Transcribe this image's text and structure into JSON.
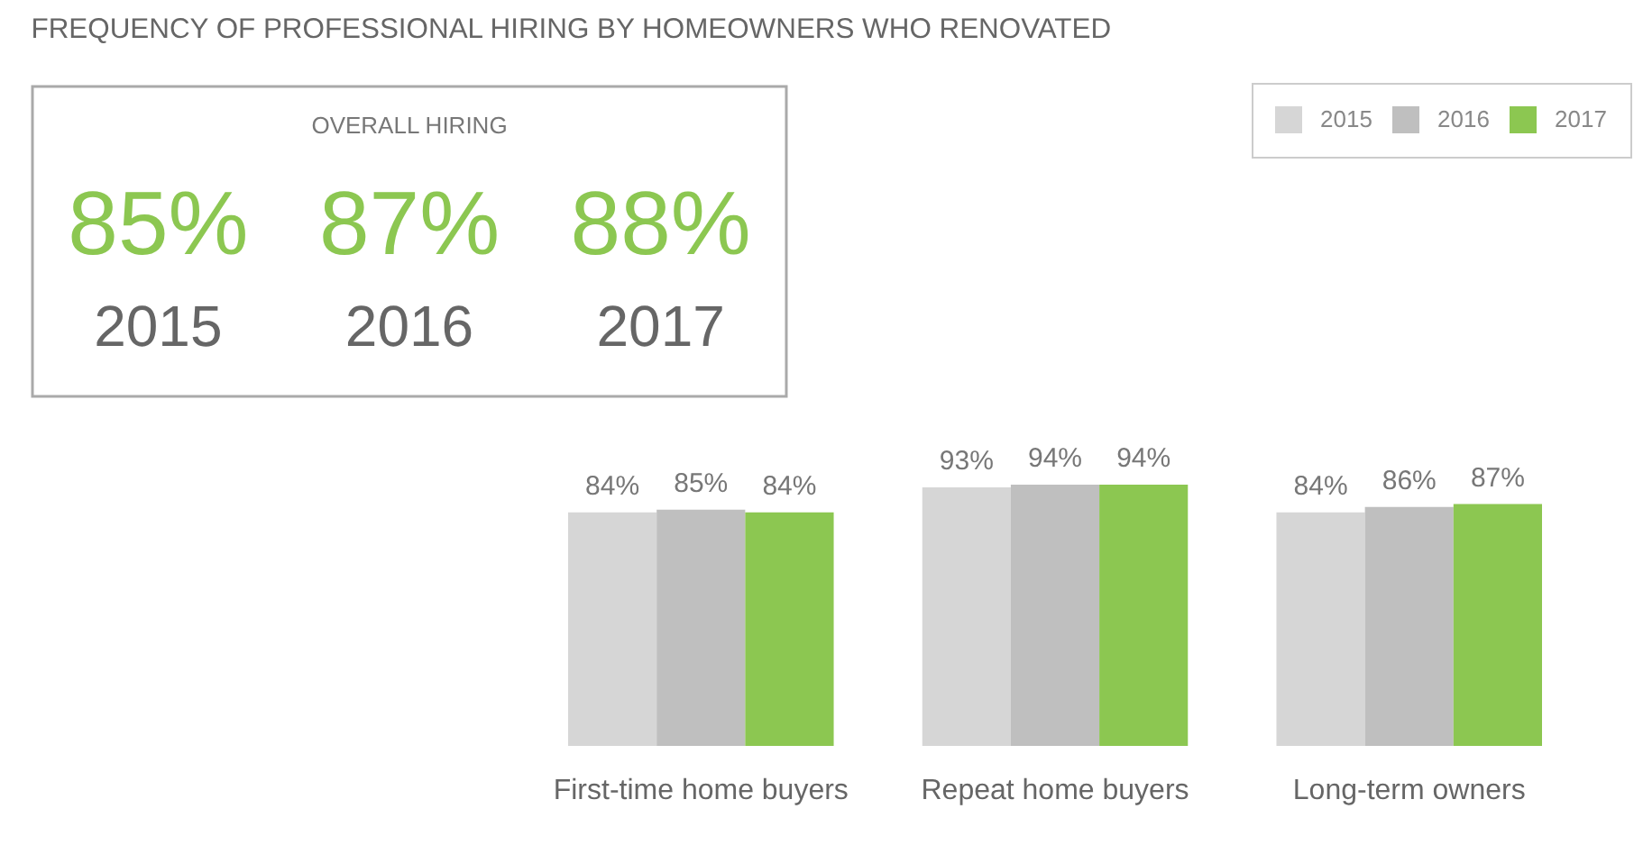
{
  "chart_data": [
    {
      "type": "bar",
      "title": "FREQUENCY OF PROFESSIONAL HIRING BY HOMEOWNERS WHO RENOVATED",
      "categories": [
        "First-time home buyers",
        "Repeat home buyers",
        "Long-term owners"
      ],
      "series": [
        {
          "name": "2015",
          "color": "#d6d6d6",
          "values": [
            84,
            93,
            84
          ],
          "value_labels": [
            "84%",
            "93%",
            "84%"
          ]
        },
        {
          "name": "2016",
          "color": "#bfbfbf",
          "values": [
            85,
            94,
            86
          ],
          "value_labels": [
            "85%",
            "94%",
            "86%"
          ]
        },
        {
          "name": "2017",
          "color": "#8cc751",
          "values": [
            84,
            94,
            87
          ],
          "value_labels": [
            "84%",
            "94%",
            "87%"
          ]
        }
      ],
      "legend": "top right",
      "tick_labels": "x"
    },
    {
      "type": "other",
      "title": "OVERALL HIRING",
      "categories": [
        "2015",
        "2016",
        "2017"
      ],
      "annotations": [
        "85%",
        "87%",
        "88%"
      ],
      "color": "#8cc751"
    }
  ]
}
